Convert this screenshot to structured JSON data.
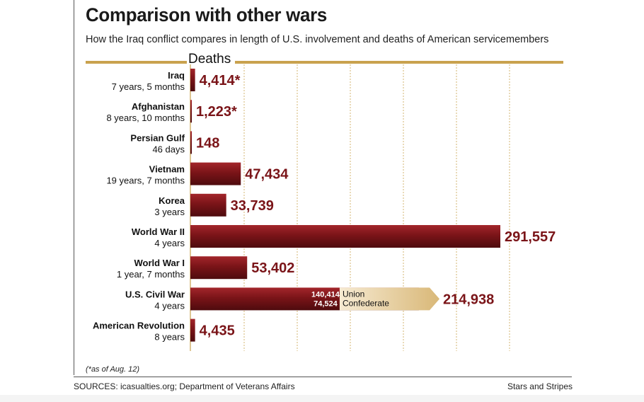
{
  "header": {
    "title": "Comparison with other wars",
    "subtitle": "How the Iraq conflict compares in length of U.S. involvement and deaths of American servicemembers"
  },
  "chart_data": {
    "type": "bar",
    "orientation": "horizontal",
    "value_axis_label": "Deaths",
    "grid": true,
    "colors": {
      "bar": "#7a1418",
      "label": "#7a1418",
      "accent_rule": "#c9a24e",
      "annotation": "#d9b878"
    },
    "xlim": [
      0,
      300000
    ],
    "categories": [
      {
        "name": "Iraq",
        "duration": "7 years, 5 months",
        "value": 4414,
        "label": "4,414*"
      },
      {
        "name": "Afghanistan",
        "duration": "8 years, 10 months",
        "value": 1223,
        "label": "1,223*"
      },
      {
        "name": "Persian Gulf",
        "duration": "46 days",
        "value": 148,
        "label": "148"
      },
      {
        "name": "Vietnam",
        "duration": "19 years, 7 months",
        "value": 47434,
        "label": "47,434"
      },
      {
        "name": "Korea",
        "duration": "3 years",
        "value": 33739,
        "label": "33,739"
      },
      {
        "name": "World War II",
        "duration": "4 years",
        "value": 291557,
        "label": "291,557"
      },
      {
        "name": "World War I",
        "duration": "1 year, 7 months",
        "value": 53402,
        "label": "53,402"
      },
      {
        "name": "U.S. Civil War",
        "duration": "4 years",
        "value": 214938,
        "label": "214,938",
        "breakdown": [
          {
            "value": 140414,
            "label": "140,414",
            "name": "Union"
          },
          {
            "value": 74524,
            "label": "74,524",
            "name": "Confederate"
          }
        ]
      },
      {
        "name": "American Revolution",
        "duration": "8 years",
        "value": 4435,
        "label": "4,435"
      }
    ]
  },
  "footer": {
    "footnote": "(*as of Aug. 12)",
    "sources": "SOURCES: icasualties.org; Department of Veterans Affairs",
    "credit": "Stars and Stripes"
  }
}
